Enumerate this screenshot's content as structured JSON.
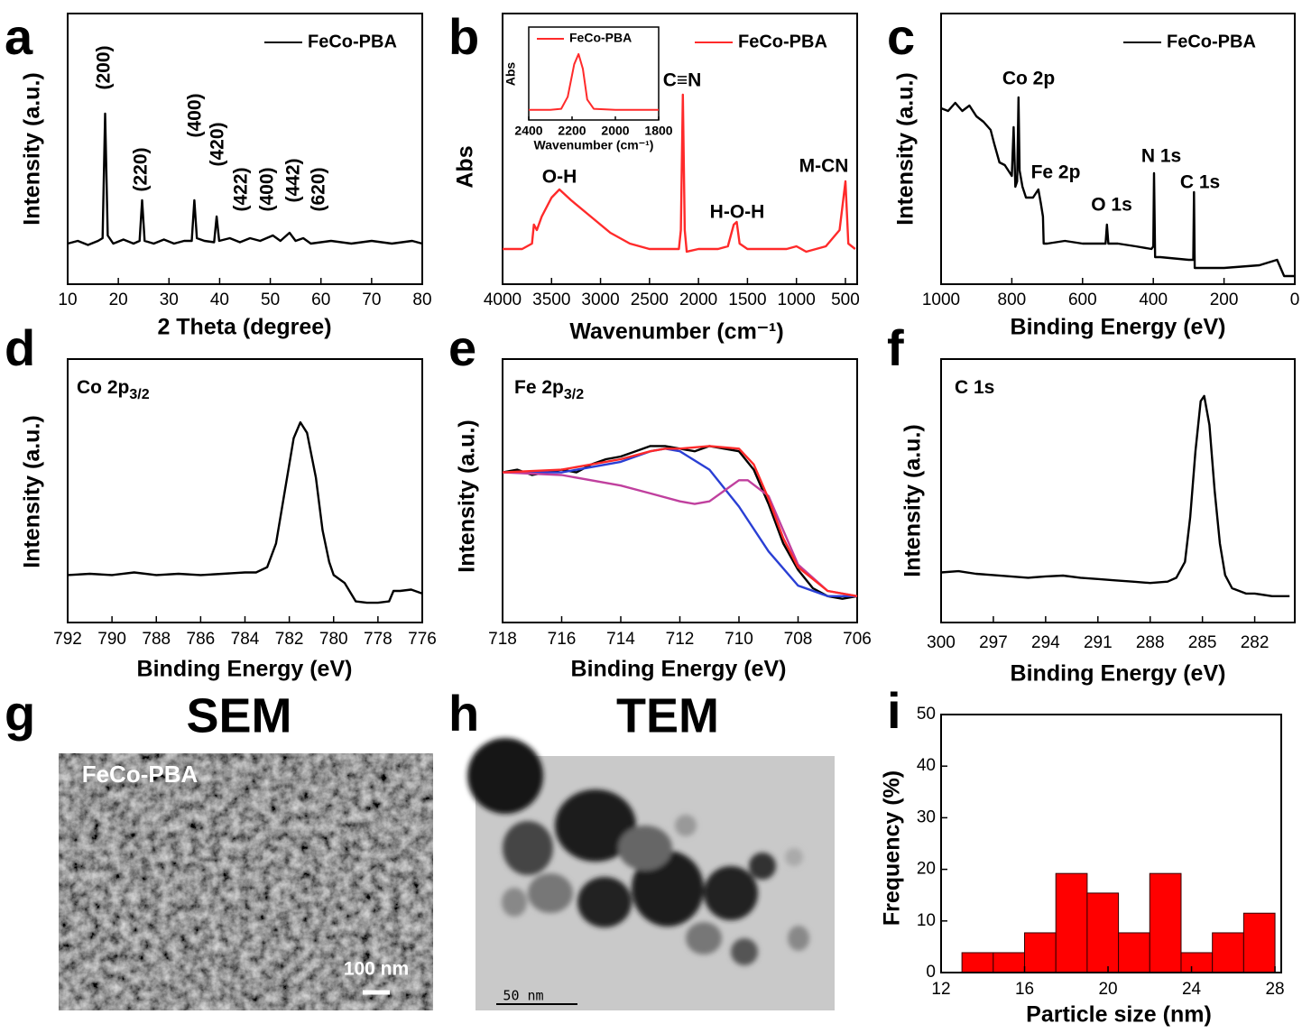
{
  "chart_data": [
    {
      "type": "line",
      "panel": "a",
      "xlabel": "2 Theta (degree)",
      "ylabel": "Intensity (a.u.)",
      "xlim": [
        10,
        80
      ],
      "xticks": [
        10,
        20,
        30,
        40,
        50,
        60,
        70,
        80
      ],
      "ylim": [
        0,
        100
      ],
      "legend": "upper right",
      "annotations": [
        "(200)",
        "(220)",
        "(400)",
        "(420)",
        "(422)",
        "(400)",
        "(442)",
        "(620)"
      ],
      "series": [
        {
          "name": "FeCo-PBA",
          "color": "#000000",
          "x": [
            10,
            12,
            14,
            16,
            16.9,
            17.4,
            17.9,
            19,
            21,
            23,
            24.2,
            24.7,
            25.2,
            27,
            29,
            31,
            33,
            34.5,
            35,
            35.5,
            37,
            38.9,
            39.4,
            39.9,
            42,
            44,
            46,
            48,
            50.5,
            52,
            53.8,
            55,
            56.5,
            58,
            62,
            66,
            70,
            74,
            78,
            80
          ],
          "values": [
            15,
            16,
            14.5,
            16,
            17,
            63,
            18,
            15,
            16.5,
            15,
            16,
            31,
            16,
            15,
            16.5,
            15,
            16,
            16,
            31,
            17,
            16,
            15.5,
            25,
            16,
            17,
            15.5,
            17,
            16,
            18,
            16,
            19,
            16,
            17,
            15,
            16,
            15,
            16,
            15,
            16,
            15
          ]
        }
      ]
    },
    {
      "type": "line",
      "panel": "b",
      "xlabel": "Wavenumber (cm⁻¹)",
      "ylabel": "Abs",
      "xlim": [
        4000,
        380
      ],
      "xticks": [
        4000,
        3500,
        3000,
        2500,
        2000,
        1500,
        1000,
        500
      ],
      "ylim": [
        0,
        100
      ],
      "legend": "upper right",
      "annotations": [
        "O-H",
        "C≡N",
        "H-O-H",
        "M-CN"
      ],
      "series": [
        {
          "name": "FeCo-PBA",
          "color": "#ff2a2a",
          "x": [
            4000,
            3800,
            3700,
            3680,
            3650,
            3600,
            3500,
            3420,
            3300,
            3100,
            2900,
            2700,
            2500,
            2300,
            2200,
            2180,
            2160,
            2140,
            2120,
            2000,
            1800,
            1700,
            1640,
            1610,
            1580,
            1500,
            1300,
            1100,
            1000,
            900,
            700,
            560,
            500,
            470,
            400
          ],
          "values": [
            13,
            13,
            15,
            22,
            20,
            25,
            32,
            35,
            31,
            25,
            19,
            15,
            13,
            13,
            13,
            20,
            70,
            20,
            12,
            13,
            13,
            14,
            22,
            23,
            15,
            13,
            13,
            13,
            14,
            12,
            14,
            20,
            38,
            15,
            13
          ]
        }
      ],
      "inset": {
        "xlabel": "Wavenumber (cm⁻¹)",
        "ylabel": "Abs",
        "xlim": [
          2400,
          1800
        ],
        "xticks": [
          2400,
          2200,
          2000,
          1800
        ],
        "ylim": [
          0,
          100
        ],
        "legend": "upper left",
        "series": [
          {
            "name": "FeCo-PBA",
            "color": "#ff2a2a",
            "x": [
              2400,
              2300,
              2250,
              2220,
              2190,
              2170,
              2150,
              2130,
              2100,
              2000,
              1900,
              1800
            ],
            "values": [
              11,
              11,
              12,
              25,
              60,
              71,
              55,
              22,
              12,
              11,
              11,
              11
            ]
          }
        ]
      }
    },
    {
      "type": "line",
      "panel": "c",
      "xlabel": "Binding Energy (eV)",
      "ylabel": "Intensity (a.u.)",
      "xlim": [
        1000,
        0
      ],
      "xticks": [
        1000,
        800,
        600,
        400,
        200,
        0
      ],
      "ylim": [
        0,
        100
      ],
      "legend": "upper right",
      "annotations": [
        "Co 2p",
        "Fe 2p",
        "O 1s",
        "N 1s",
        "C 1s"
      ],
      "series": [
        {
          "name": "FeCo-PBA",
          "color": "#000000",
          "x": [
            1000,
            980,
            960,
            940,
            920,
            900,
            880,
            860,
            850,
            835,
            820,
            800,
            795,
            790,
            785,
            781,
            778,
            770,
            760,
            740,
            725,
            718,
            712,
            710,
            700,
            650,
            600,
            550,
            535,
            531,
            527,
            500,
            450,
            405,
            400,
            398,
            395,
            380,
            300,
            287,
            285,
            283,
            280,
            200,
            100,
            50,
            30,
            0
          ],
          "values": [
            65,
            64,
            67,
            64,
            66,
            62,
            60,
            57,
            52,
            45,
            44,
            40,
            58,
            36,
            38,
            69,
            42,
            36,
            32,
            32,
            35,
            30,
            25,
            15,
            15,
            16,
            15,
            15,
            15,
            22,
            15,
            15,
            14,
            13,
            14,
            41,
            10,
            10,
            9,
            9,
            34,
            6,
            6,
            6,
            7,
            9,
            3,
            3
          ]
        }
      ]
    },
    {
      "type": "line",
      "panel": "d",
      "xlabel": "Binding Energy (eV)",
      "ylabel": "Intensity (a.u.)",
      "xlim": [
        792,
        776
      ],
      "xticks": [
        792,
        790,
        788,
        786,
        784,
        782,
        780,
        778,
        776
      ],
      "ylim": [
        0,
        100
      ],
      "label": {
        "text": "Co 2p",
        "sub": "3/2"
      },
      "series": [
        {
          "color": "#000000",
          "x": [
            792,
            791,
            790,
            789,
            788,
            787,
            786,
            785,
            784,
            783.5,
            783,
            782.6,
            782.2,
            781.8,
            781.5,
            781.2,
            780.8,
            780.5,
            780.2,
            780,
            779.5,
            779,
            778.5,
            778,
            777.5,
            777.3,
            777,
            776.5,
            776
          ],
          "values": [
            18,
            18.5,
            18,
            19,
            18,
            18.5,
            18,
            18.5,
            19,
            19,
            21,
            30,
            50,
            70,
            76,
            72,
            55,
            35,
            23,
            18,
            15,
            8,
            7.5,
            7.5,
            8,
            12,
            12,
            12.5,
            11
          ]
        }
      ]
    },
    {
      "type": "line",
      "panel": "e",
      "xlabel": "Binding Energy (eV)",
      "ylabel": "Intensity (a.u.)",
      "xlim": [
        718,
        706
      ],
      "xticks": [
        718,
        716,
        714,
        712,
        710,
        708,
        706
      ],
      "ylim": [
        0,
        100
      ],
      "label": {
        "text": "Fe 2p",
        "sub": "3/2"
      },
      "series": [
        {
          "color": "#000000",
          "x": [
            718,
            717.5,
            717,
            716.5,
            716,
            715.5,
            715,
            714.5,
            714,
            713.5,
            713,
            712.5,
            712,
            711.5,
            711,
            710.5,
            710,
            709.5,
            709,
            708.5,
            708,
            707.5,
            707,
            706.5,
            706
          ],
          "values": [
            57,
            58,
            56,
            57,
            58,
            57,
            60,
            62,
            63,
            65,
            67,
            67,
            66,
            65,
            67,
            66,
            65,
            58,
            45,
            30,
            20,
            13,
            10,
            9,
            10
          ]
        },
        {
          "color": "#2a3fd4",
          "x": [
            718,
            716,
            714,
            713,
            712.5,
            712,
            711,
            710,
            709,
            708,
            707,
            706
          ],
          "values": [
            57,
            57,
            61,
            65,
            66,
            65,
            58,
            44,
            27,
            14,
            10,
            10
          ]
        },
        {
          "color": "#c0409e",
          "x": [
            718,
            716,
            714,
            713,
            712,
            711.5,
            711,
            710.5,
            710,
            709.7,
            709,
            708.5,
            708,
            707,
            706
          ],
          "values": [
            57,
            56,
            52,
            49,
            46,
            45,
            46,
            50,
            54,
            54,
            48,
            35,
            22,
            12,
            10
          ]
        },
        {
          "color": "#ff2a2a",
          "x": [
            718,
            716,
            714,
            713,
            712.5,
            712,
            711,
            710,
            709.5,
            709,
            708.5,
            708,
            707,
            706
          ],
          "values": [
            57,
            58,
            62,
            65,
            66,
            66,
            67,
            66,
            60,
            47,
            32,
            21,
            12,
            10
          ]
        }
      ]
    },
    {
      "type": "line",
      "panel": "f",
      "xlabel": "Binding Energy (eV)",
      "ylabel": "Intensity (a.u.)",
      "xlim": [
        300,
        279.7
      ],
      "xticks": [
        300,
        297,
        294,
        291,
        288,
        285,
        282
      ],
      "ylim": [
        0,
        100
      ],
      "label": {
        "text": "C 1s"
      },
      "series": [
        {
          "color": "#000000",
          "x": [
            300,
            299,
            298,
            297,
            296,
            295,
            294,
            293,
            292,
            291,
            290,
            289,
            288,
            287,
            286.5,
            286,
            285.7,
            285.4,
            285.1,
            284.9,
            284.6,
            284.3,
            284,
            283.7,
            283.3,
            282.5,
            282,
            281,
            280
          ],
          "values": [
            19,
            19.5,
            18.5,
            18,
            17.5,
            17,
            17.5,
            17.8,
            17,
            16.5,
            16,
            15.5,
            15,
            15.5,
            17,
            23,
            40,
            65,
            84,
            86,
            75,
            50,
            30,
            18,
            13,
            11,
            11,
            10,
            10
          ]
        }
      ]
    },
    {
      "type": "histogram",
      "panel": "i",
      "xlabel": "Particle size (nm)",
      "ylabel": "Frequency (%)",
      "xlim": [
        12,
        28.3
      ],
      "xticks": [
        12,
        16,
        20,
        24,
        28
      ],
      "ylim": [
        0,
        50
      ],
      "yticks": [
        0,
        10,
        20,
        30,
        40,
        50
      ],
      "color": "#ff0000",
      "bins": [
        13,
        14.5,
        16,
        17.5,
        19,
        20.5,
        22,
        23.5,
        25,
        26.5,
        28
      ],
      "values": [
        3.85,
        3.85,
        7.7,
        19.2,
        15.4,
        7.7,
        19.2,
        3.85,
        7.7,
        11.5
      ]
    }
  ],
  "images": [
    {
      "panel": "g",
      "title": "SEM",
      "label": "FeCo-PBA",
      "scale_bar": "100 nm"
    },
    {
      "panel": "h",
      "title": "TEM",
      "scale_bar": "50 nm"
    }
  ]
}
